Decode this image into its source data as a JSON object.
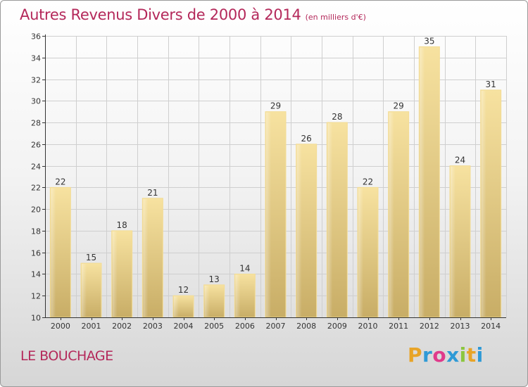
{
  "header": {
    "title": "Autres Revenus Divers de 2000 à 2014",
    "unit": "(en milliers d'€)"
  },
  "footer": {
    "commune": "LE BOUCHAGE",
    "logo": {
      "letters": [
        "P",
        "r",
        "o",
        "x",
        "i",
        "t",
        "i"
      ],
      "colors": [
        "#e8a427",
        "#2f9ad6",
        "#e03a8b",
        "#2f9ad6",
        "#8cc63f",
        "#e8a427",
        "#2f9ad6"
      ]
    }
  },
  "colors": {
    "title": "#b4285a",
    "bar_light": "#f7e2a0",
    "bar_dark": "#c8ad66",
    "grid": "#cfcfcf",
    "axis": "#333333"
  },
  "chart_data": {
    "type": "bar",
    "title": "Autres Revenus Divers de 2000 à 2014",
    "categories": [
      "2000",
      "2001",
      "2002",
      "2003",
      "2004",
      "2005",
      "2006",
      "2007",
      "2008",
      "2009",
      "2010",
      "2011",
      "2012",
      "2013",
      "2014"
    ],
    "values": [
      22,
      15,
      18,
      21,
      12,
      13,
      14,
      29,
      26,
      28,
      22,
      29,
      35,
      24,
      31
    ],
    "ylim": [
      10,
      36
    ],
    "yticks": [
      10,
      12,
      14,
      16,
      18,
      20,
      22,
      24,
      26,
      28,
      30,
      32,
      34,
      36
    ],
    "grid": true,
    "legend": "none"
  }
}
